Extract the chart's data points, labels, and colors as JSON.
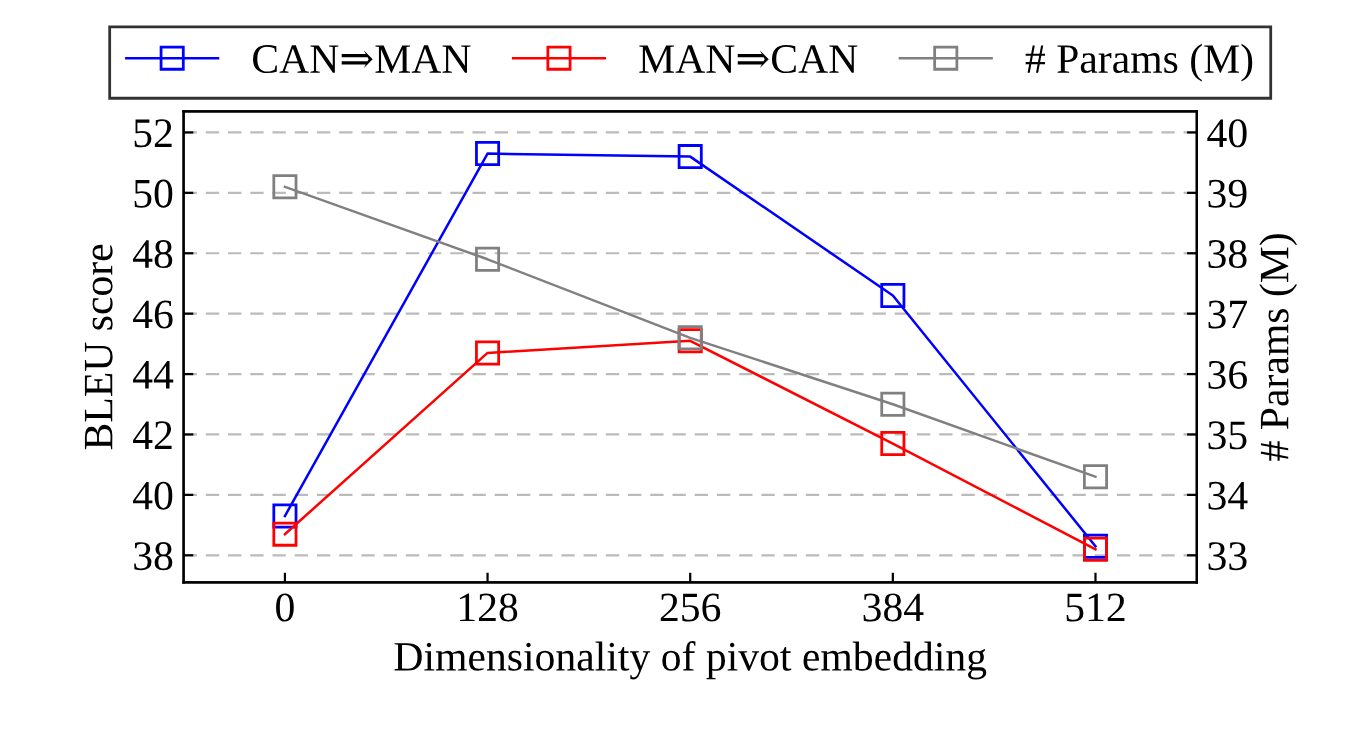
{
  "chart_data": {
    "type": "line",
    "xlabel": "Dimensionality of pivot embedding",
    "ylabel": "BLEU score",
    "y2label": "# Params (M)",
    "x": [
      0,
      128,
      256,
      384,
      512
    ],
    "xlim": [
      -64,
      576
    ],
    "xticks": [
      0,
      128,
      256,
      384,
      512
    ],
    "ylim": [
      37.1,
      52.7
    ],
    "yticks": [
      38,
      40,
      42,
      44,
      46,
      48,
      50,
      52
    ],
    "y2lim": [
      32.55,
      40.35
    ],
    "y2ticks": [
      33,
      34,
      35,
      36,
      37,
      38,
      39,
      40
    ],
    "grid": "y",
    "legend": "top",
    "marker": "square",
    "line_style": "solid",
    "series": [
      {
        "name": "CAN⇒MAN",
        "color": "#0000ff",
        "values": [
          39.3,
          51.3,
          51.2,
          46.6,
          38.3
        ]
      },
      {
        "name": "MAN⇒CAN",
        "color": "#ff0000",
        "values": [
          38.7,
          44.7,
          45.1,
          41.7,
          38.2
        ]
      },
      {
        "name": "# Params (M)",
        "color": "#808080",
        "axis": "y2",
        "values": [
          39.1,
          37.9,
          36.6,
          35.5,
          34.3
        ]
      }
    ]
  }
}
